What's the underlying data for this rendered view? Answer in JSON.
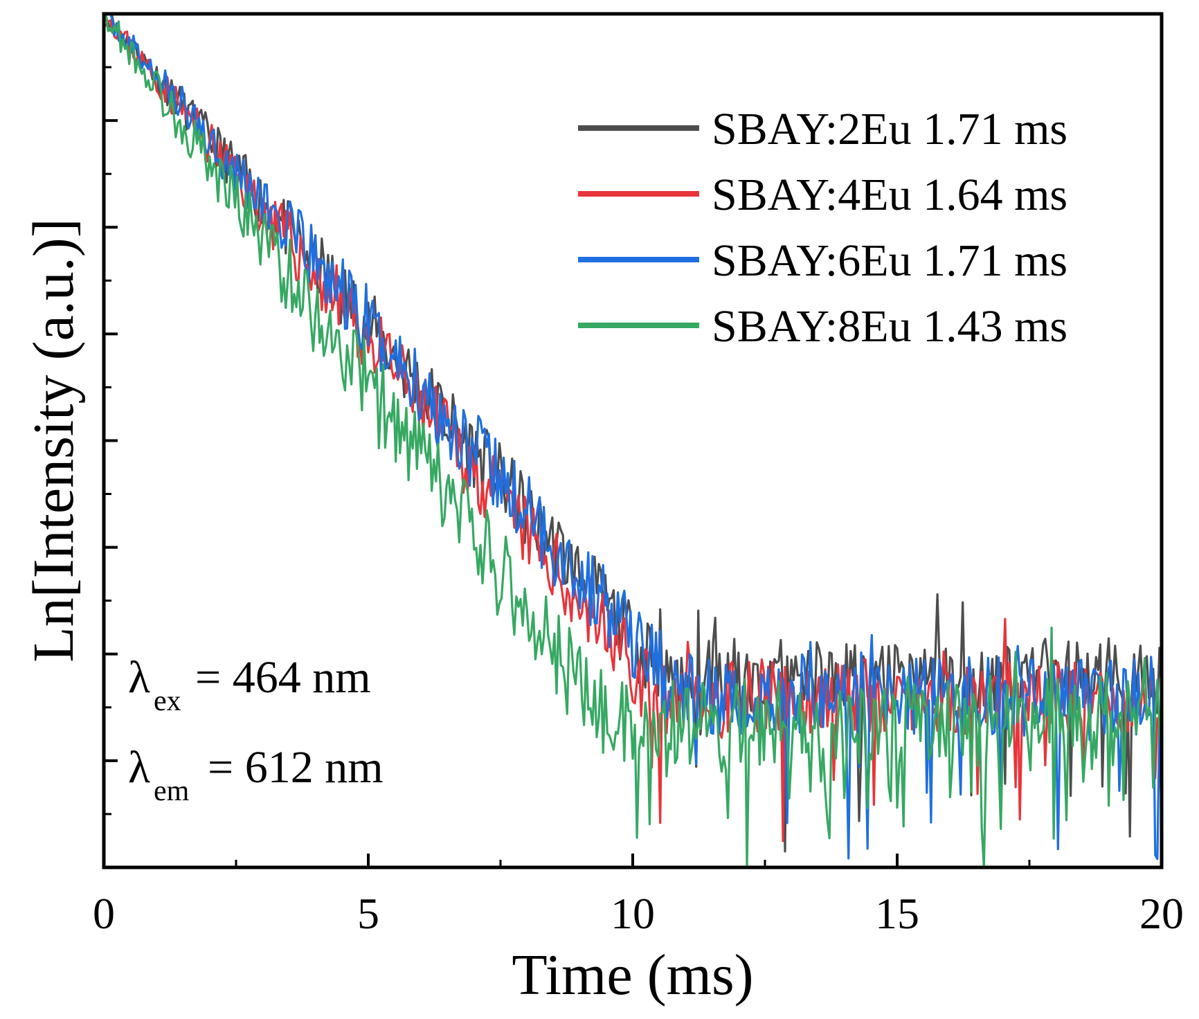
{
  "chart_data": {
    "type": "line",
    "title": "",
    "xlabel": "Time (ms)",
    "ylabel": "Ln[Intensity (a.u.)]",
    "xlim": [
      0,
      20
    ],
    "ylim": [
      0,
      8
    ],
    "x_ticks": [
      0,
      5,
      10,
      15,
      20
    ],
    "x_tick_labels": [
      "0",
      "5",
      "10",
      "15",
      "20"
    ],
    "y_ticks": [
      0,
      1,
      2,
      3,
      4,
      5,
      6,
      7,
      8
    ],
    "y_tick_labels": [],
    "legend_position": "top-right",
    "sample_spacing": 0.04,
    "series": [
      {
        "name": "SBAY:2Eu 1.71 ms",
        "label": "SBAY:2Eu 1.71 ms",
        "lifetime_ms": 1.71,
        "color": "#4d4d4d",
        "start_y": 8.0,
        "decay_rate": 0.585,
        "floor_y": 1.8,
        "noise": 0.16,
        "seed": 11
      },
      {
        "name": "SBAY:4Eu 1.64 ms",
        "label": "SBAY:4Eu 1.64 ms",
        "lifetime_ms": 1.64,
        "color": "#e8343b",
        "start_y": 8.0,
        "decay_rate": 0.61,
        "floor_y": 1.6,
        "noise": 0.16,
        "seed": 23
      },
      {
        "name": "SBAY:6Eu 1.71 ms",
        "label": "SBAY:6Eu 1.71 ms",
        "lifetime_ms": 1.71,
        "color": "#1f6fe0",
        "start_y": 8.0,
        "decay_rate": 0.585,
        "floor_y": 1.6,
        "noise": 0.17,
        "seed": 37
      },
      {
        "name": "SBAY:8Eu 1.43 ms",
        "label": "SBAY:8Eu 1.43 ms",
        "lifetime_ms": 1.43,
        "color": "#36a862",
        "start_y": 8.0,
        "decay_rate": 0.7,
        "floor_y": 1.35,
        "noise": 0.2,
        "seed": 53
      }
    ],
    "annotations": [
      {
        "symbol": "λ",
        "subscript": "ex",
        "text": "= 464 nm"
      },
      {
        "symbol": "λ",
        "subscript": "em",
        "text": "= 612 nm"
      }
    ]
  }
}
